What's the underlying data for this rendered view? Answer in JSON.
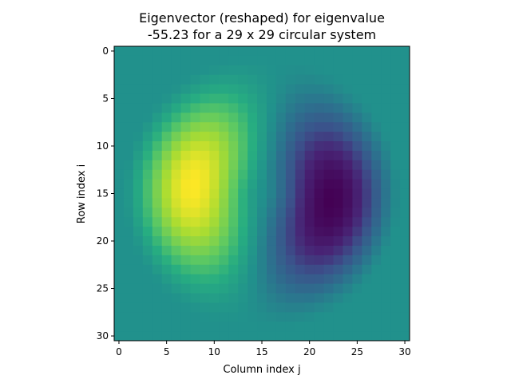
{
  "chart_data": {
    "type": "heatmap",
    "title_lines": [
      "Eigenvector (reshaped) for eigenvalue",
      "-55.23 for a 29 x 29 circular system"
    ],
    "xlabel": "Column index j",
    "ylabel": "Row index i",
    "xlim": [
      -0.5,
      30.5
    ],
    "ylim_inverted": [
      -0.5,
      30.5
    ],
    "xticks": [
      0,
      5,
      10,
      15,
      20,
      25,
      30
    ],
    "yticks": [
      0,
      5,
      10,
      15,
      20,
      25,
      30
    ],
    "grid_size": [
      31,
      31
    ],
    "colormap": "viridis",
    "background_value_color": "#21918c",
    "system_size": "29 x 29",
    "eigenvalue": -55.23,
    "positive_lobe_center": {
      "col": 8,
      "row": 14
    },
    "negative_lobe_center": {
      "col": 22,
      "row": 16
    }
  }
}
